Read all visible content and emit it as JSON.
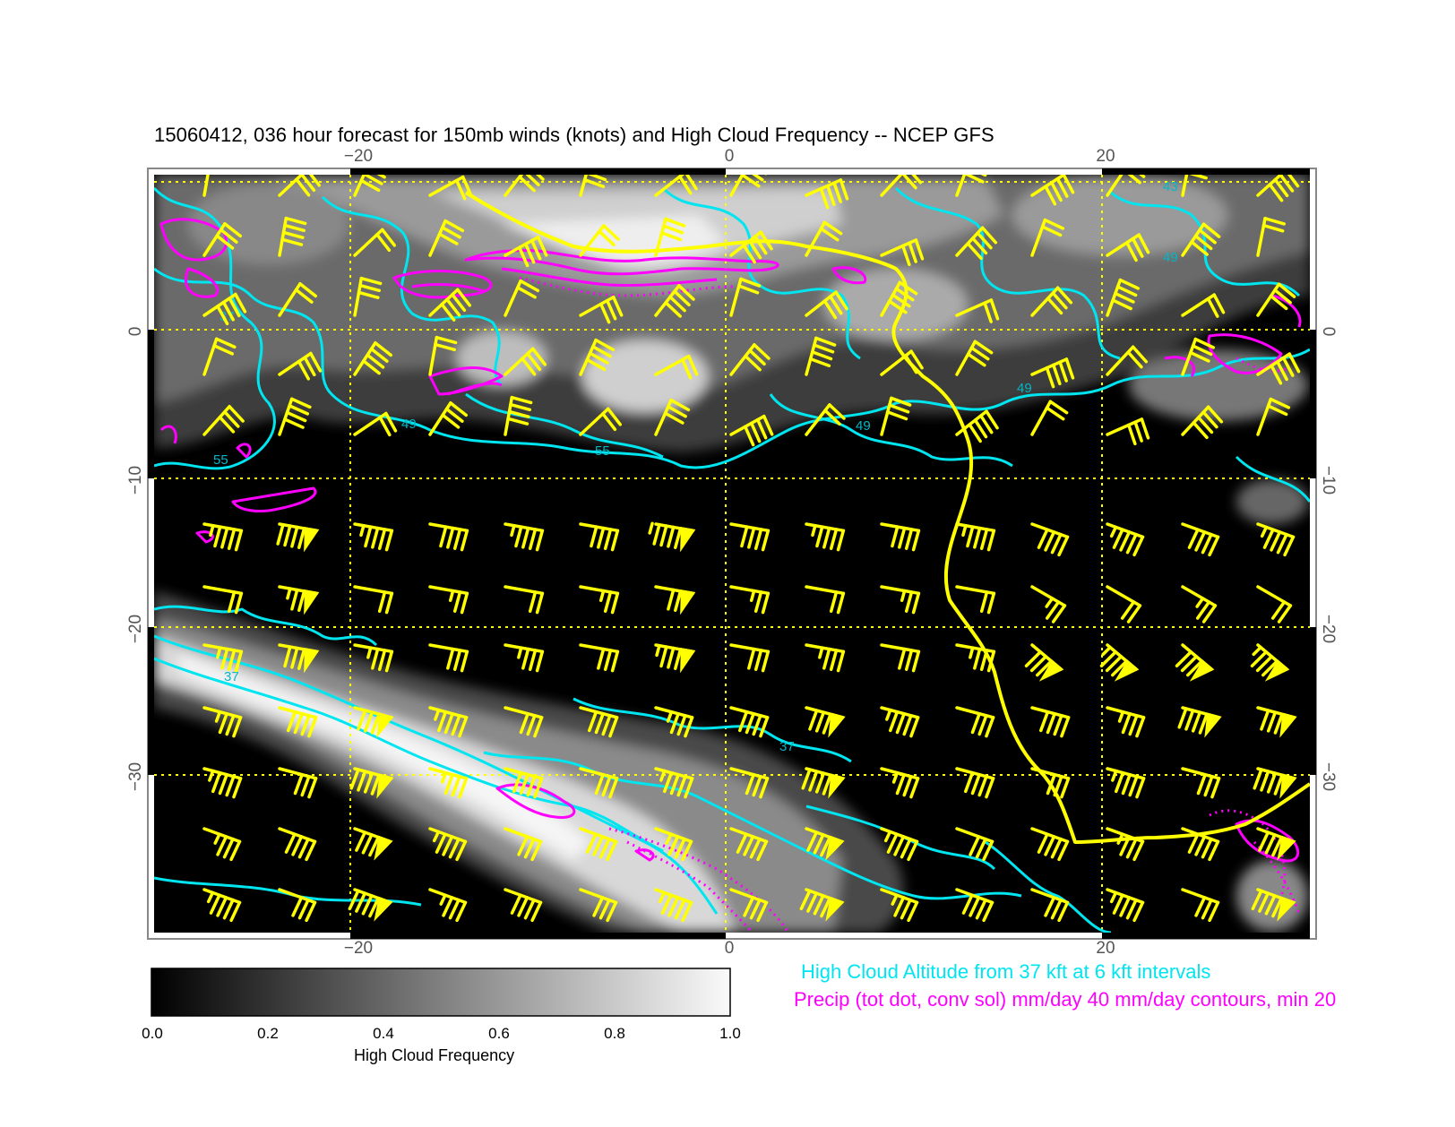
{
  "title": "15060412, 036 hour forecast for 150mb winds (knots) and High Cloud Frequency -- NCEP GFS",
  "x_axis": {
    "ticks": [
      -20,
      0,
      20
    ],
    "labels": [
      "−20",
      "0",
      "20"
    ]
  },
  "y_axis": {
    "ticks": [
      0,
      -10,
      -20,
      -30
    ],
    "labels": [
      "0",
      "−10",
      "−20",
      "−30"
    ]
  },
  "map": {
    "lon_range": [
      -30.5,
      31
    ],
    "lat_range": [
      10.5,
      -40
    ]
  },
  "contour_labels": [
    "43",
    "49",
    "37",
    "55",
    "49",
    "55",
    "49",
    "37",
    "37",
    "49"
  ],
  "colorbar": {
    "title": "High Cloud Frequency",
    "range": [
      0.0,
      1.0
    ],
    "tick_labels": [
      "0.0",
      "0.2",
      "0.4",
      "0.6",
      "0.8",
      "1.0"
    ]
  },
  "legend": {
    "cyan_text": "High Cloud Altitude from 37 kft at 6 kft intervals",
    "magenta_text": "Precip (tot dot, conv sol) mm/day 40 mm/day contours, min 20"
  },
  "colors": {
    "wind_barbs": "#ffff00",
    "cloud_altitude": "#00e5f0",
    "precip": "#ff00ff",
    "grid": "#ffff00"
  }
}
